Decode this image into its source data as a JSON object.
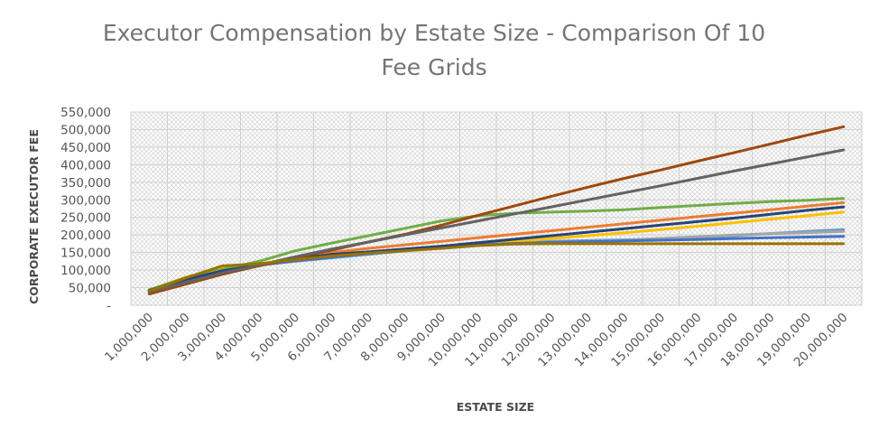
{
  "chart_data": {
    "type": "line",
    "title_lines": [
      "Executor Compensation by Estate Size - Comparison Of 10",
      "Fee Grids"
    ],
    "xlabel": "ESTATE SIZE",
    "ylabel": "CORPORATE EXECUTOR FEE",
    "x": [
      1000000,
      2000000,
      3000000,
      4000000,
      5000000,
      6000000,
      7000000,
      8000000,
      9000000,
      10000000,
      11000000,
      12000000,
      13000000,
      14000000,
      15000000,
      16000000,
      17000000,
      18000000,
      19000000,
      20000000
    ],
    "x_tick_labels": [
      "1,000,000",
      "2,000,000",
      "3,000,000",
      "4,000,000",
      "5,000,000",
      "6,000,000",
      "7,000,000",
      "8,000,000",
      "9,000,000",
      "10,000,000",
      "11,000,000",
      "12,000,000",
      "13,000,000",
      "14,000,000",
      "15,000,000",
      "16,000,000",
      "17,000,000",
      "18,000,000",
      "19,000,000",
      "20,000,000"
    ],
    "y_tick_values": [
      0,
      50000,
      100000,
      150000,
      200000,
      250000,
      300000,
      350000,
      400000,
      450000,
      500000,
      550000
    ],
    "y_tick_labels": [
      "-",
      "50,000",
      "100,000",
      "150,000",
      "200,000",
      "250,000",
      "300,000",
      "350,000",
      "400,000",
      "450,000",
      "500,000",
      "550,000"
    ],
    "ylim": [
      0,
      550000
    ],
    "grid": true,
    "legend": "none",
    "series": [
      {
        "color": "#5B9BD5",
        "values": [
          42000,
          75000,
          100000,
          115000,
          125000,
          135000,
          145000,
          155000,
          165000,
          175000,
          180000,
          182000,
          184000,
          186000,
          190000,
          194000,
          198000,
          204000,
          210000,
          215000
        ]
      },
      {
        "color": "#ED7D31",
        "values": [
          35000,
          70000,
          95000,
          115000,
          135000,
          150000,
          162000,
          172000,
          182000,
          192000,
          202000,
          212000,
          222000,
          232000,
          242000,
          252000,
          262000,
          272000,
          282000,
          292000
        ]
      },
      {
        "color": "#A5A5A5",
        "values": [
          40000,
          72000,
          97000,
          113000,
          128000,
          140000,
          150000,
          160000,
          168000,
          175000,
          178000,
          180000,
          182000,
          185000,
          190000,
          195000,
          200000,
          204000,
          207000,
          210000
        ]
      },
      {
        "color": "#FFC000",
        "values": [
          43000,
          80000,
          105000,
          115000,
          125000,
          138000,
          148000,
          158000,
          166000,
          174000,
          182000,
          190000,
          198000,
          206000,
          215000,
          225000,
          235000,
          245000,
          255000,
          265000
        ]
      },
      {
        "color": "#4472C4",
        "values": [
          41000,
          74000,
          99000,
          114000,
          126000,
          137000,
          147000,
          157000,
          165000,
          172000,
          176000,
          179000,
          181000,
          183000,
          185000,
          187000,
          190000,
          192000,
          194000,
          196000
        ]
      },
      {
        "color": "#70AD47",
        "values": [
          44000,
          78000,
          102000,
          125000,
          155000,
          177000,
          198000,
          219000,
          240000,
          255000,
          262000,
          265000,
          268000,
          272000,
          278000,
          284000,
          290000,
          295000,
          299000,
          304000
        ]
      },
      {
        "color": "#264478",
        "values": [
          42000,
          73000,
          98000,
          114000,
          132000,
          145000,
          152000,
          160000,
          168000,
          178000,
          188000,
          198000,
          208000,
          218000,
          228000,
          238000,
          248000,
          259000,
          270000,
          280000
        ]
      },
      {
        "color": "#9E480E",
        "values": [
          32000,
          60000,
          88000,
          112000,
          135000,
          157000,
          180000,
          202000,
          228000,
          256000,
          283000,
          310000,
          336000,
          361000,
          385000,
          410000,
          434000,
          459000,
          484000,
          508000
        ]
      },
      {
        "color": "#636363",
        "values": [
          38000,
          65000,
          92000,
          114000,
          138000,
          160000,
          180000,
          200000,
          220000,
          240000,
          260000,
          280000,
          300000,
          320000,
          340000,
          361000,
          382000,
          402000,
          422000,
          442000
        ]
      },
      {
        "color": "#997300",
        "values": [
          40000,
          78000,
          112000,
          118000,
          130000,
          140000,
          148000,
          155000,
          162000,
          170000,
          174000,
          175000,
          175000,
          175000,
          175000,
          175000,
          175000,
          175000,
          175000,
          175000
        ]
      }
    ]
  }
}
